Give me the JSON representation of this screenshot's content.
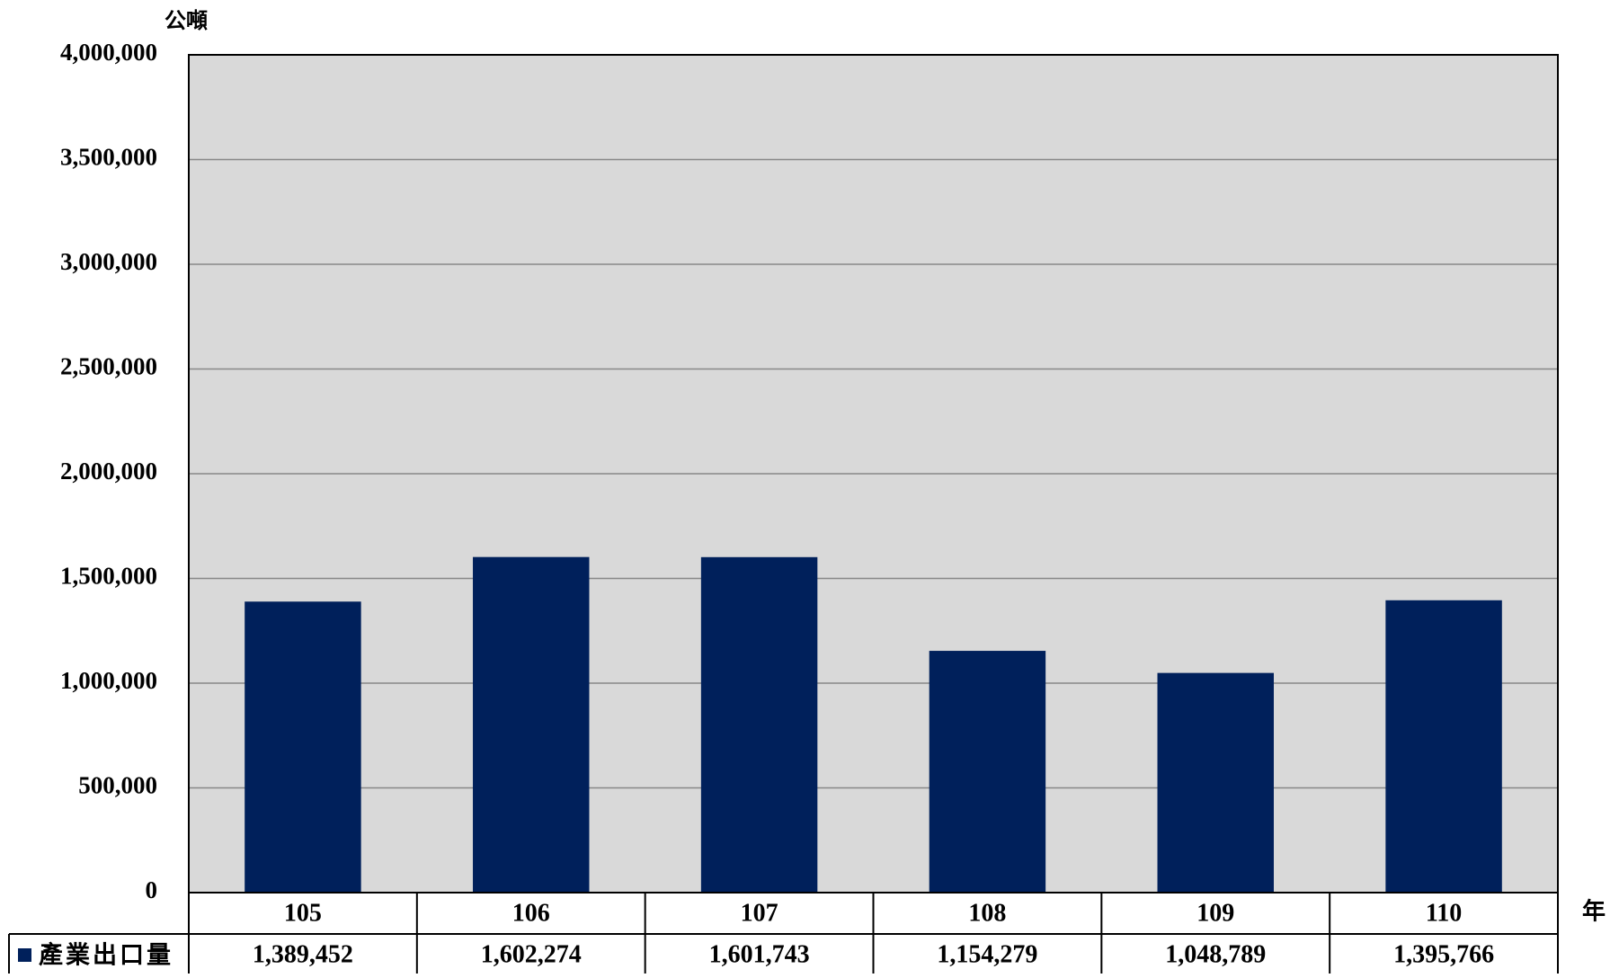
{
  "colors": {
    "plot_background": "#d9d9d9",
    "bar": "#00205b",
    "gridline": "#888888",
    "border": "#000000"
  },
  "chart_data": {
    "type": "bar",
    "title": "",
    "ylabel": "公噸",
    "xlabel": "年",
    "ylim": [
      0,
      4000000
    ],
    "yticks": [
      0,
      500000,
      1000000,
      1500000,
      2000000,
      2500000,
      3000000,
      3500000,
      4000000
    ],
    "ytick_labels": [
      "0",
      "500,000",
      "1,000,000",
      "1,500,000",
      "2,000,000",
      "2,500,000",
      "3,000,000",
      "3,500,000",
      "4,000,000"
    ],
    "grid": true,
    "categories": [
      "105",
      "106",
      "107",
      "108",
      "109",
      "110"
    ],
    "series": [
      {
        "name": "產業出口量",
        "values": [
          1389452,
          1602274,
          1601743,
          1154279,
          1048789,
          1395766
        ],
        "value_labels": [
          "1,389,452",
          "1,602,274",
          "1,601,743",
          "1,154,279",
          "1,048,789",
          "1,395,766"
        ]
      }
    ],
    "legend": "data-table-left"
  }
}
